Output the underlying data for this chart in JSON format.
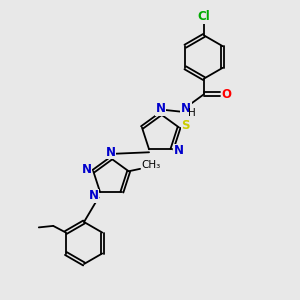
{
  "background_color": "#e8e8e8",
  "bond_color": "#000000",
  "n_color": "#0000cc",
  "o_color": "#ff0000",
  "s_color": "#cccc00",
  "cl_color": "#00aa00",
  "figsize": [
    3.0,
    3.0
  ],
  "dpi": 100,
  "xlim": [
    0,
    10
  ],
  "ylim": [
    0,
    10
  ]
}
